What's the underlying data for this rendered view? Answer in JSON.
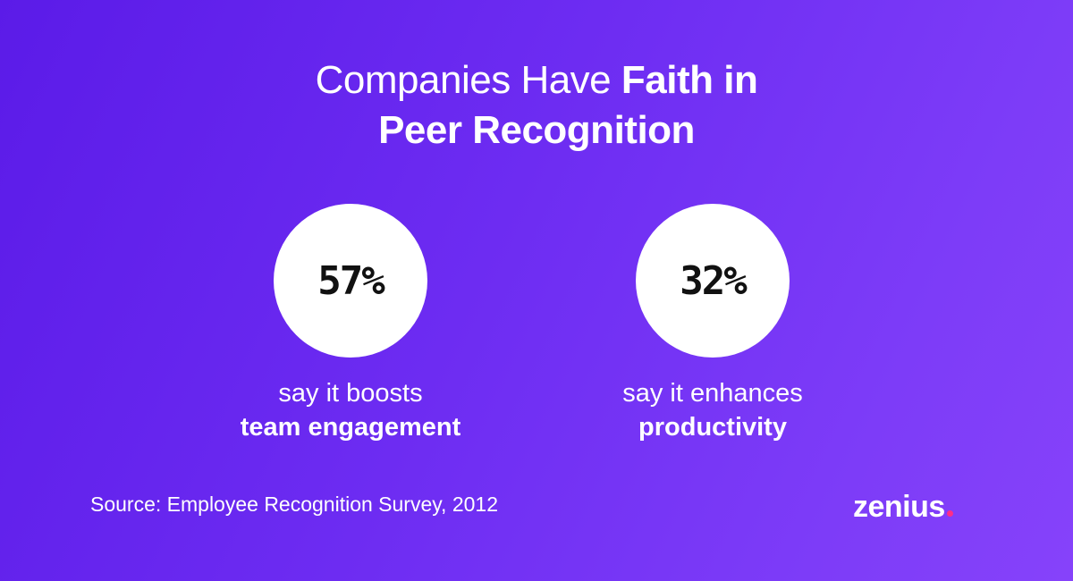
{
  "headline": {
    "part_light": "Companies Have ",
    "part_bold_1": "Faith in",
    "part_bold_2": "Peer Recognition"
  },
  "stats": [
    {
      "value": "57%",
      "line1": "say it boosts",
      "line2": "team engagement"
    },
    {
      "value": "32%",
      "line1": "say it enhances",
      "line2": "productivity"
    }
  ],
  "source": "Source: Employee Recognition Survey, 2012",
  "logo": {
    "text": "zenius",
    "dot_color": "#ff2e86"
  },
  "colors": {
    "background_start": "#5b1be8",
    "background_end": "#8642fa",
    "text": "#ffffff",
    "circle": "#ffffff",
    "stat_text": "#111111"
  }
}
